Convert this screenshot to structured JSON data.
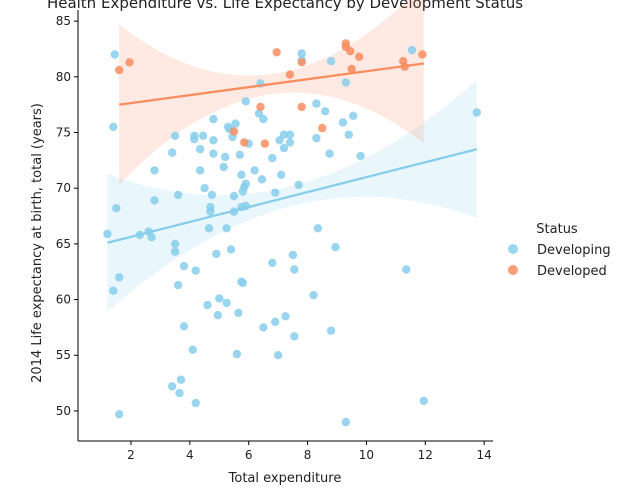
{
  "chart_data": {
    "type": "scatter",
    "title": "Health Expenditure vs. Life Expectancy by Development Status",
    "xlabel": "Total expenditure",
    "ylabel": "2014 Life expectancy at birth, total (years)",
    "xlim": [
      0.2,
      14.3
    ],
    "ylim": [
      47.3,
      86.0
    ],
    "xticks": [
      2,
      4,
      6,
      8,
      10,
      12,
      14
    ],
    "yticks": [
      50,
      55,
      60,
      65,
      70,
      75,
      80,
      85
    ],
    "grid": false,
    "legend": {
      "title": "Status",
      "placement": "right"
    },
    "series": [
      {
        "name": "Developing",
        "color": "#87ceeb",
        "points": [
          [
            1.2,
            65.9
          ],
          [
            1.4,
            60.8
          ],
          [
            1.4,
            75.5
          ],
          [
            1.45,
            82.0
          ],
          [
            1.5,
            68.2
          ],
          [
            1.6,
            62.0
          ],
          [
            1.6,
            49.7
          ],
          [
            2.3,
            65.8
          ],
          [
            2.6,
            66.1
          ],
          [
            2.7,
            65.6
          ],
          [
            2.8,
            71.6
          ],
          [
            2.8,
            68.9
          ],
          [
            3.4,
            73.2
          ],
          [
            3.4,
            52.2
          ],
          [
            3.5,
            65.0
          ],
          [
            3.5,
            64.3
          ],
          [
            3.5,
            74.7
          ],
          [
            3.6,
            61.3
          ],
          [
            3.6,
            69.4
          ],
          [
            3.7,
            52.8
          ],
          [
            3.65,
            51.6
          ],
          [
            3.8,
            63.0
          ],
          [
            3.8,
            57.6
          ],
          [
            4.1,
            55.5
          ],
          [
            4.15,
            74.7
          ],
          [
            4.15,
            74.4
          ],
          [
            4.2,
            62.6
          ],
          [
            4.2,
            50.7
          ],
          [
            4.35,
            73.5
          ],
          [
            4.35,
            71.6
          ],
          [
            4.45,
            74.7
          ],
          [
            4.5,
            70.0
          ],
          [
            4.6,
            59.5
          ],
          [
            4.65,
            66.4
          ],
          [
            4.7,
            68.3
          ],
          [
            4.7,
            67.9
          ],
          [
            4.75,
            69.4
          ],
          [
            4.8,
            73.1
          ],
          [
            4.8,
            74.3
          ],
          [
            4.8,
            76.2
          ],
          [
            4.9,
            64.1
          ],
          [
            4.95,
            58.6
          ],
          [
            5.0,
            60.1
          ],
          [
            5.15,
            71.9
          ],
          [
            5.2,
            72.8
          ],
          [
            5.25,
            59.7
          ],
          [
            5.25,
            66.4
          ],
          [
            5.3,
            75.5
          ],
          [
            5.35,
            75.3
          ],
          [
            5.4,
            64.5
          ],
          [
            5.45,
            74.6
          ],
          [
            5.5,
            67.9
          ],
          [
            5.5,
            69.3
          ],
          [
            5.55,
            75.8
          ],
          [
            5.6,
            55.1
          ],
          [
            5.65,
            58.8
          ],
          [
            5.7,
            73.0
          ],
          [
            5.75,
            71.2
          ],
          [
            5.75,
            68.3
          ],
          [
            5.75,
            61.6
          ],
          [
            5.8,
            61.5
          ],
          [
            5.8,
            69.7
          ],
          [
            5.85,
            70.1
          ],
          [
            5.9,
            68.4
          ],
          [
            5.9,
            77.8
          ],
          [
            5.9,
            70.4
          ],
          [
            6.0,
            74.0
          ],
          [
            6.2,
            71.6
          ],
          [
            6.35,
            76.7
          ],
          [
            6.4,
            79.4
          ],
          [
            6.45,
            70.8
          ],
          [
            6.5,
            76.2
          ],
          [
            6.5,
            57.5
          ],
          [
            6.8,
            72.7
          ],
          [
            6.8,
            63.3
          ],
          [
            6.9,
            58.0
          ],
          [
            6.9,
            69.6
          ],
          [
            7.0,
            55.0
          ],
          [
            7.05,
            74.3
          ],
          [
            7.1,
            71.2
          ],
          [
            7.2,
            73.6
          ],
          [
            7.2,
            74.8
          ],
          [
            7.25,
            58.5
          ],
          [
            7.4,
            74.1
          ],
          [
            7.4,
            74.8
          ],
          [
            7.5,
            64.0
          ],
          [
            7.55,
            62.7
          ],
          [
            7.55,
            56.7
          ],
          [
            7.7,
            70.3
          ],
          [
            7.8,
            81.5
          ],
          [
            7.8,
            82.1
          ],
          [
            8.2,
            60.4
          ],
          [
            8.3,
            77.6
          ],
          [
            8.3,
            74.5
          ],
          [
            8.35,
            66.4
          ],
          [
            8.6,
            76.9
          ],
          [
            8.75,
            73.1
          ],
          [
            8.8,
            81.4
          ],
          [
            8.8,
            57.2
          ],
          [
            8.95,
            64.7
          ],
          [
            9.2,
            75.9
          ],
          [
            9.3,
            79.5
          ],
          [
            9.3,
            49.0
          ],
          [
            9.4,
            74.8
          ],
          [
            9.55,
            76.5
          ],
          [
            9.8,
            72.9
          ],
          [
            11.35,
            62.7
          ],
          [
            11.55,
            82.4
          ],
          [
            11.95,
            50.9
          ],
          [
            13.75,
            76.8
          ]
        ],
        "regression": {
          "x": [
            1.2,
            13.75
          ],
          "y": [
            65.1,
            73.5
          ]
        }
      },
      {
        "name": "Developed",
        "color": "#fa8c5e",
        "points": [
          [
            1.6,
            80.6
          ],
          [
            1.95,
            81.3
          ],
          [
            5.5,
            75.1
          ],
          [
            5.85,
            74.1
          ],
          [
            6.4,
            77.3
          ],
          [
            6.55,
            74.0
          ],
          [
            6.95,
            82.2
          ],
          [
            7.4,
            80.2
          ],
          [
            7.8,
            81.3
          ],
          [
            7.8,
            77.3
          ],
          [
            8.5,
            75.4
          ],
          [
            9.3,
            82.7
          ],
          [
            9.3,
            83.0
          ],
          [
            9.45,
            82.3
          ],
          [
            9.5,
            80.7
          ],
          [
            9.75,
            81.8
          ],
          [
            11.25,
            81.4
          ],
          [
            11.3,
            80.9
          ],
          [
            11.9,
            82.0
          ]
        ],
        "regression": {
          "x": [
            1.6,
            11.95
          ],
          "y": [
            77.5,
            81.2
          ]
        }
      }
    ]
  }
}
